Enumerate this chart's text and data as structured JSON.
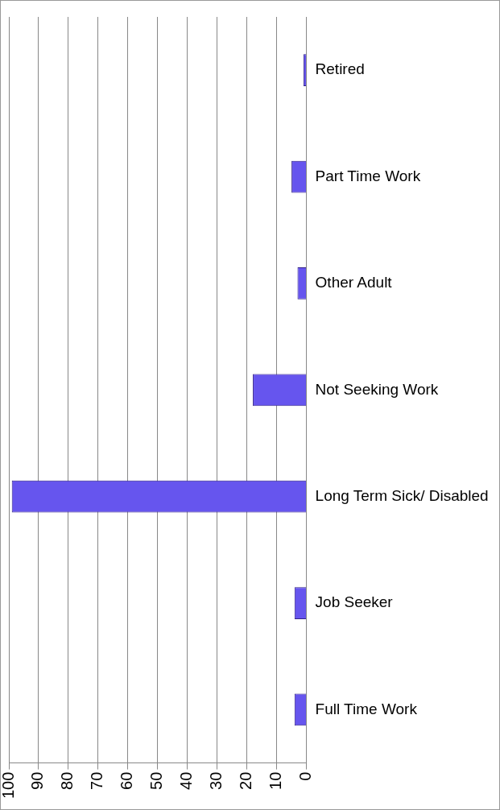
{
  "chart_data": {
    "type": "bar",
    "orientation": "horizontal",
    "categories": [
      "Retired",
      "Part Time Work",
      "Other Adult",
      "Not Seeking Work",
      "Long Term Sick/ Disabled",
      "Job Seeker",
      "Full Time Work"
    ],
    "values": [
      1,
      5,
      3,
      18,
      99,
      4,
      4
    ],
    "color": "#6655ee",
    "xlim": [
      100,
      0
    ],
    "xticks": [
      100,
      90,
      80,
      70,
      60,
      50,
      40,
      30,
      20,
      10,
      0
    ],
    "grid": "x",
    "legend": false
  }
}
